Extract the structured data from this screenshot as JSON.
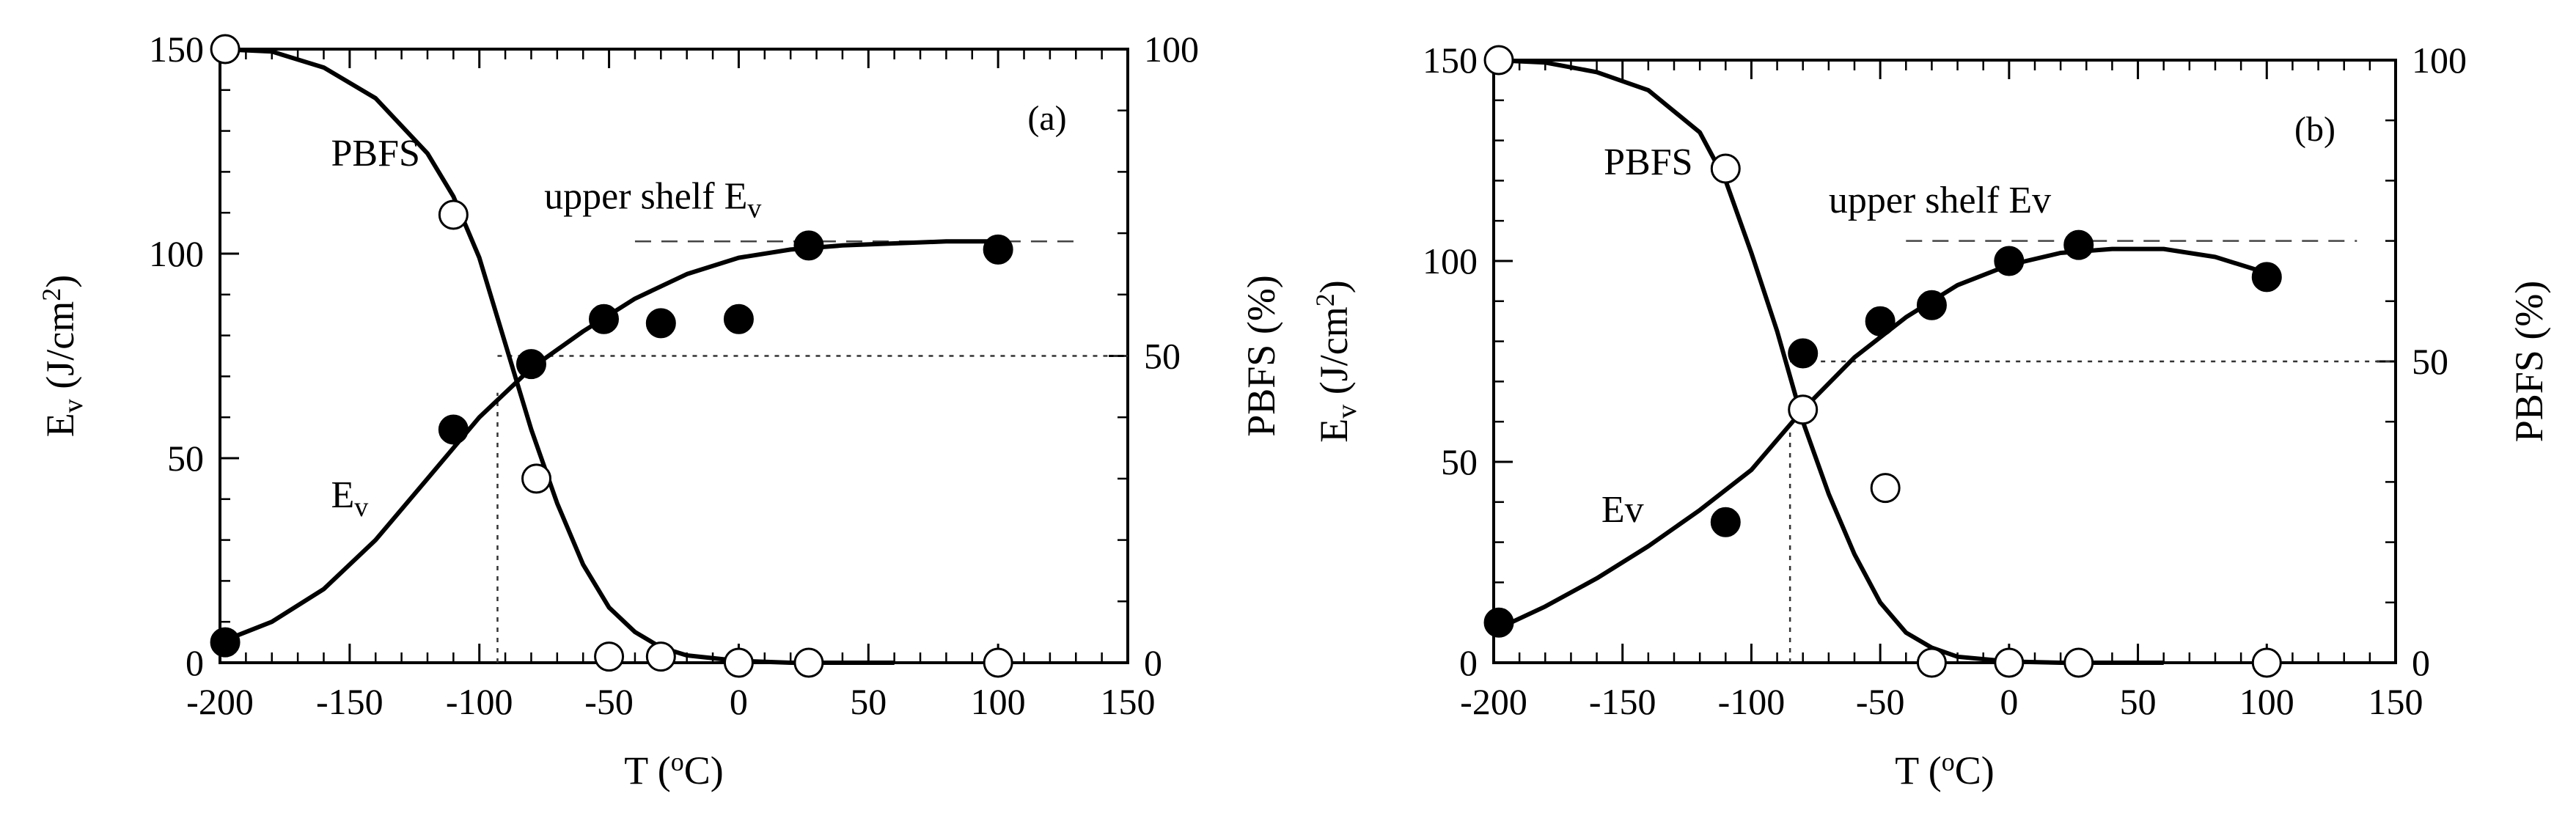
{
  "chart_data": [
    {
      "type": "scatter",
      "panel_label": "(a)",
      "xlabel": {
        "main": "T (",
        "sup": "o",
        "tail": "C)"
      },
      "ylabel_left": {
        "main": "E",
        "sub": "v",
        "mid": " (J/cm",
        "sup": "2",
        "tail": ")"
      },
      "ylabel_right": "PBFS (%)",
      "xlim": [
        -200,
        150
      ],
      "ylim_left": [
        0,
        150
      ],
      "ylim_right": [
        0,
        100
      ],
      "xticks": [
        "-200",
        "-150",
        "-100",
        "-50",
        "0",
        "50",
        "100",
        "150"
      ],
      "yticks_left": [
        "0",
        "50",
        "100",
        "150"
      ],
      "yticks_right": [
        "0",
        "50",
        "100"
      ],
      "annotations": {
        "pbfs": "PBFS",
        "ev": {
          "main": "E",
          "sub": "v"
        },
        "upper_shelf": {
          "main": "upper shelf E",
          "sub": "v"
        }
      },
      "series": [
        {
          "name": "Ev",
          "axis": "left",
          "marker": "filled-circle",
          "x": [
            -198,
            -110,
            -80,
            -52,
            -30,
            0,
            27,
            100
          ],
          "y": [
            5,
            57,
            73,
            84,
            83,
            84,
            102,
            101
          ]
        },
        {
          "name": "PBFS",
          "axis": "right",
          "marker": "open-circle",
          "x": [
            -198,
            -110,
            -78,
            -50,
            -30,
            0,
            27,
            100
          ],
          "y": [
            100,
            73,
            30,
            1,
            1,
            0,
            0,
            0
          ]
        }
      ],
      "fit_curves": {
        "ev": {
          "x": [
            -200,
            -180,
            -160,
            -140,
            -120,
            -100,
            -90,
            -80,
            -60,
            -40,
            -20,
            0,
            20,
            40,
            60,
            80,
            100
          ],
          "y": [
            5,
            10,
            18,
            30,
            45,
            60,
            66,
            72,
            81,
            89,
            95,
            99,
            101,
            102,
            102.5,
            103,
            103
          ]
        },
        "pbfs": {
          "x": [
            -200,
            -180,
            -160,
            -140,
            -120,
            -110,
            -100,
            -90,
            -80,
            -70,
            -60,
            -50,
            -40,
            -30,
            -20,
            0,
            20,
            40,
            60
          ],
          "y": [
            100,
            99.6,
            97,
            92,
            83,
            76,
            66,
            52,
            38,
            26,
            16,
            9,
            5,
            2.5,
            1.2,
            0.3,
            0,
            0,
            0
          ]
        }
      },
      "upper_shelf_line": {
        "y": 103,
        "x": [
          -40,
          130
        ]
      },
      "transition": {
        "temperature": -93,
        "ev_value": 66,
        "ref_x_end": 150,
        "pbfs_crossing": 50
      }
    },
    {
      "type": "scatter",
      "panel_label": "(b)",
      "xlabel": {
        "main": "T (",
        "sup": "o",
        "tail": "C)"
      },
      "ylabel_left": {
        "main": "E",
        "sub": "v",
        "mid": " (J/cm",
        "sup": "2",
        "tail": ")"
      },
      "ylabel_right": "PBFS (%)",
      "xlim": [
        -200,
        150
      ],
      "ylim_left": [
        0,
        150
      ],
      "ylim_right": [
        0,
        100
      ],
      "xticks": [
        "-200",
        "-150",
        "-100",
        "-50",
        "0",
        "50",
        "100",
        "150"
      ],
      "yticks_left": [
        "0",
        "50",
        "100",
        "150"
      ],
      "yticks_right": [
        "0",
        "50",
        "100"
      ],
      "annotations": {
        "pbfs": "PBFS",
        "ev": {
          "main": "Ev",
          "sub": ""
        },
        "upper_shelf": {
          "main": "upper shelf Ev",
          "sub": ""
        }
      },
      "series": [
        {
          "name": "Ev",
          "axis": "left",
          "marker": "filled-circle",
          "x": [
            -198,
            -110,
            -80,
            -50,
            -30,
            0,
            27,
            100
          ],
          "y": [
            10,
            35,
            77,
            85,
            89,
            100,
            104,
            96
          ]
        },
        {
          "name": "PBFS",
          "axis": "right",
          "marker": "open-circle",
          "x": [
            -198,
            -110,
            -80,
            -48,
            -30,
            0,
            27,
            100
          ],
          "y": [
            100,
            82,
            42,
            29,
            0,
            0,
            0,
            0
          ]
        }
      ],
      "fit_curves": {
        "ev": {
          "x": [
            -200,
            -180,
            -160,
            -140,
            -120,
            -100,
            -80,
            -60,
            -40,
            -20,
            0,
            20,
            40,
            60,
            80,
            100
          ],
          "y": [
            8,
            14,
            21,
            29,
            38,
            48,
            63,
            76,
            86,
            94,
            99,
            102,
            103,
            103,
            101,
            97
          ]
        },
        "pbfs": {
          "x": [
            -200,
            -180,
            -160,
            -140,
            -120,
            -110,
            -100,
            -90,
            -80,
            -70,
            -60,
            -50,
            -40,
            -30,
            -20,
            0,
            20,
            40,
            60
          ],
          "y": [
            100,
            99.6,
            98,
            95,
            88,
            80,
            68,
            55,
            40,
            28,
            18,
            10,
            5,
            2.5,
            1,
            0.2,
            0,
            0,
            0
          ]
        }
      },
      "upper_shelf_line": {
        "y": 105,
        "x": [
          -40,
          135
        ]
      },
      "transition": {
        "temperature": -85,
        "ev_value": 63,
        "ref_x_end": 150,
        "pbfs_crossing": 50
      }
    }
  ]
}
